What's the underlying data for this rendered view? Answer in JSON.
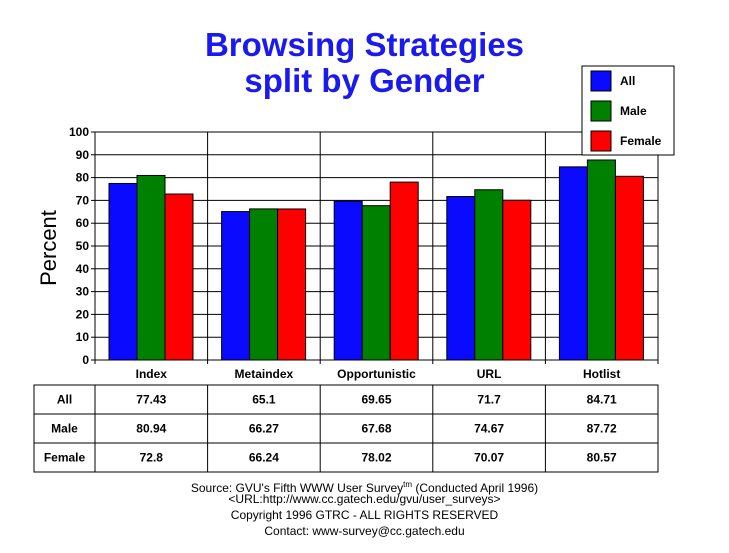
{
  "chart_data": {
    "type": "bar",
    "title": [
      "Browsing Strategies",
      "split by Gender"
    ],
    "ylabel": "Percent",
    "xlabel": "",
    "ylim": [
      0,
      100
    ],
    "yticks": [
      0,
      10,
      20,
      30,
      40,
      50,
      60,
      70,
      80,
      90,
      100
    ],
    "grid": true,
    "legend_position": "top-right",
    "categories": [
      "Index",
      "Metaindex",
      "Opportunistic",
      "URL",
      "Hotlist"
    ],
    "series": [
      {
        "name": "All",
        "color": "#0a0aff",
        "values": [
          77.43,
          65.1,
          69.65,
          71.7,
          84.71
        ],
        "labels": [
          "77.43",
          "65.1",
          "69.65",
          "71.7",
          "84.71"
        ]
      },
      {
        "name": "Male",
        "color": "#008000",
        "values": [
          80.94,
          66.27,
          67.68,
          74.67,
          87.72
        ],
        "labels": [
          "80.94",
          "66.27",
          "67.68",
          "74.67",
          "87.72"
        ]
      },
      {
        "name": "Female",
        "color": "#ff0000",
        "values": [
          72.8,
          66.24,
          78.02,
          70.07,
          80.57
        ],
        "labels": [
          "72.8",
          "66.24",
          "78.02",
          "70.07",
          "80.57"
        ]
      }
    ]
  },
  "source": {
    "line1_prefix": "Source: GVU's Fifth WWW User Survey",
    "line1_sup": "tm",
    "line1_suffix": "  (Conducted April 1996)",
    "line2": "<URL:http://www.cc.gatech.edu/gvu/user_surveys>",
    "line3": "Copyright 1996 GTRC -  ALL RIGHTS RESERVED",
    "line4": "Contact: www-survey@cc.gatech.edu"
  }
}
